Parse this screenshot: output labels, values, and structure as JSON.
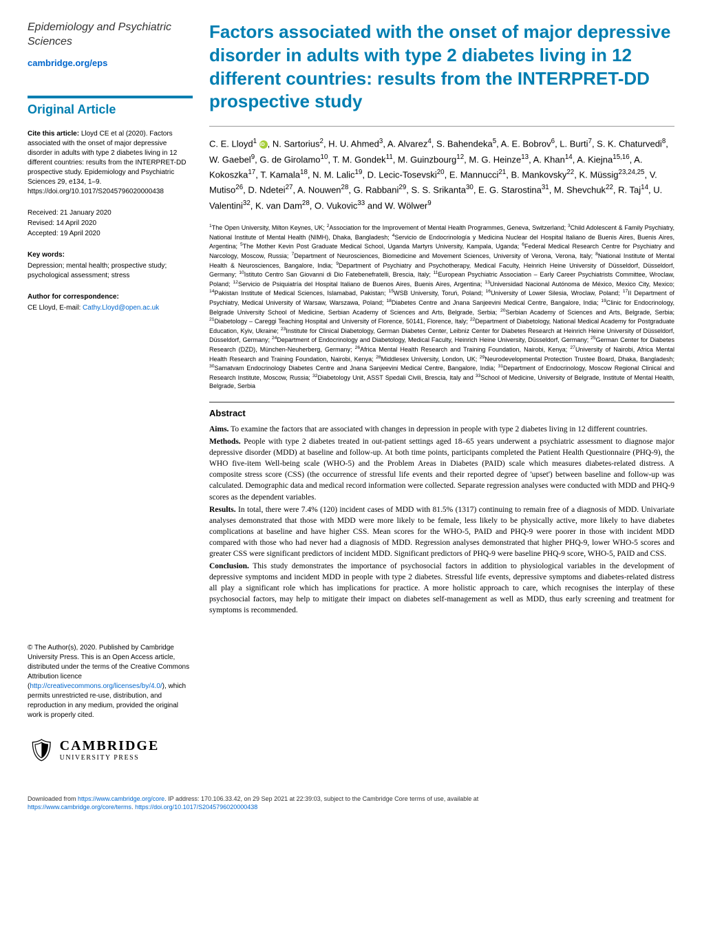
{
  "journal": {
    "name": "Epidemiology and Psychiatric Sciences",
    "link": "cambridge.org/eps"
  },
  "article_type": "Original Article",
  "citation": {
    "label": "Cite this article:",
    "text": "Lloyd CE et al (2020). Factors associated with the onset of major depressive disorder in adults with type 2 diabetes living in 12 different countries: results from the INTERPRET-DD prospective study. Epidemiology and Psychiatric Sciences 29, e134, 1–9. https://doi.org/10.1017/S2045796020000438"
  },
  "dates": {
    "received": "Received: 21 January 2020",
    "revised": "Revised: 14 April 2020",
    "accepted": "Accepted: 19 April 2020"
  },
  "keywords": {
    "label": "Key words:",
    "text": "Depression; mental health; prospective study; psychological assessment; stress"
  },
  "correspondence": {
    "label": "Author for correspondence:",
    "name": "CE Lloyd, E-mail: ",
    "email": "Cathy.Lloyd@open.ac.uk"
  },
  "license": {
    "text1": "© The Author(s), 2020. Published by Cambridge University Press. This is an Open Access article, distributed under the terms of the Creative Commons Attribution licence (",
    "link": "http://creativecommons.org/licenses/by/4.0/",
    "text2": "), which permits unrestricted re-use, distribution, and reproduction in any medium, provided the original work is properly cited."
  },
  "cambridge": {
    "top": "CAMBRIDGE",
    "bottom": "UNIVERSITY PRESS"
  },
  "title": "Factors associated with the onset of major depressive disorder in adults with type 2 diabetes living in 12 different countries: results from the INTERPRET-DD prospective study",
  "authors_html": "C. E. Lloyd<sup>1</sup> <span class='orcid' data-name='orcid-icon' data-interactable='false'></span>, N. Sartorius<sup>2</sup>, H. U. Ahmed<sup>3</sup>, A. Alvarez<sup>4</sup>, S. Bahendeka<sup>5</sup>, A. E. Bobrov<sup>6</sup>, L. Burti<sup>7</sup>, S. K. Chaturvedi<sup>8</sup>, W. Gaebel<sup>9</sup>, G. de Girolamo<sup>10</sup>, T. M. Gondek<sup>11</sup>, M. Guinzbourg<sup>12</sup>, M. G. Heinze<sup>13</sup>, A. Khan<sup>14</sup>, A. Kiejna<sup>15,16</sup>, A. Kokoszka<sup>17</sup>, T. Kamala<sup>18</sup>, N. M. Lalic<sup>19</sup>, D. Lecic-Tosevski<sup>20</sup>, E. Mannucci<sup>21</sup>, B. Mankovsky<sup>22</sup>, K. Müssig<sup>23,24,25</sup>, V. Mutiso<sup>26</sup>, D. Ndetei<sup>27</sup>, A. Nouwen<sup>28</sup>, G. Rabbani<sup>29</sup>, S. S. Srikanta<sup>30</sup>, E. G. Starostina<sup>31</sup>, M. Shevchuk<sup>22</sup>, R. Taj<sup>14</sup>, U. Valentini<sup>32</sup>, K. van Dam<sup>28</sup>, O. Vukovic<sup>33</sup> and W. Wölwer<sup>9</sup>",
  "affiliations": "<sup>1</sup>The Open University, Milton Keynes, UK; <sup>2</sup>Association for the Improvement of Mental Health Programmes, Geneva, Switzerland; <sup>3</sup>Child Adolescent & Family Psychiatry, National Institute of Mental Health (NIMH), Dhaka, Bangladesh; <sup>4</sup>Servicio de Endocrinología y Medicina Nuclear del Hospital Italiano de Buenis Aires, Buenis Aires, Argentina; <sup>5</sup>The Mother Kevin Post Graduate Medical School, Uganda Martyrs University, Kampala, Uganda; <sup>6</sup>Federal Medical Research Centre for Psychiatry and Narcology, Moscow, Russia; <sup>7</sup>Department of Neurosciences, Biomedicine and Movement Sciences, University of Verona, Verona, Italy; <sup>8</sup>National Institute of Mental Health & Neurosciences, Bangalore, India; <sup>9</sup>Department of Psychiatry and Psychotherapy, Medical Faculty, Heinrich Heine University of Düsseldorf, Düsseldorf, Germany; <sup>10</sup>Istituto Centro San Giovanni di Dio Fatebenefratelli, Brescia, Italy; <sup>11</sup>European Psychiatric Association – Early Career Psychiatrists Committee, Wroclaw, Poland; <sup>12</sup>Servicio de Psiquiatría del Hospital Italiano de Buenos Aires, Buenis Aires, Argentina; <sup>13</sup>Universidad Nacional Autónoma de México, Mexico City, Mexico; <sup>14</sup>Pakistan Institute of Medical Sciences, Islamabad, Pakistan; <sup>15</sup>WSB University, Toruń, Poland; <sup>16</sup>University of Lower Silesia, Wroclaw, Poland; <sup>17</sup>II Department of Psychiatry, Medical University of Warsaw, Warszawa, Poland; <sup>18</sup>Diabetes Centre and Jnana Sanjeevini Medical Centre, Bangalore, India; <sup>19</sup>Clinic for Endocrinology, Belgrade University School of Medicine, Serbian Academy of Sciences and Arts, Belgrade, Serbia; <sup>20</sup>Serbian Academy of Sciences and Arts, Belgrade, Serbia; <sup>21</sup>Diabetology – Careggi Teaching Hospital and University of Florence, 50141, Florence, Italy; <sup>22</sup>Department of Diabetology, National Medical Academy for Postgraduate Education, Kyiv, Ukraine; <sup>23</sup>Institute for Clinical Diabetology, German Diabetes Center, Leibniz Center for Diabetes Research at Heinrich Heine University of Düsseldorf, Düsseldorf, Germany; <sup>24</sup>Department of Endocrinology and Diabetology, Medical Faculty, Heinrich Heine University, Düsseldorf, Germany; <sup>25</sup>German Center for Diabetes Research (DZD), München-Neuherberg, Germany; <sup>26</sup>Africa Mental Health Research and Training Foundation, Nairobi, Kenya; <sup>27</sup>University of Nairobi, Africa Mental Health Research and Training Foundation, Nairobi, Kenya; <sup>28</sup>Middlesex University, London, UK; <sup>29</sup>Neurodevelopmental Protection Trustee Board, Dhaka, Bangladesh; <sup>30</sup>Samatvam Endocrinology Diabetes Centre and Jnana Sanjeevini Medical Centre, Bangalore, India; <sup>31</sup>Department of Endocrinology, Moscow Regional Clinical and Research Institute, Moscow, Russia; <sup>32</sup>Diabetology Unit, ASST Spedali Civili, Brescia, Italy and <sup>33</sup>School of Medicine, University of Belgrade, Institute of Mental Health, Belgrade, Serbia",
  "abstract": {
    "heading": "Abstract",
    "aims": {
      "label": "Aims.",
      "text": " To examine the factors that are associated with changes in depression in people with type 2 diabetes living in 12 different countries."
    },
    "methods": {
      "label": "Methods.",
      "text": " People with type 2 diabetes treated in out-patient settings aged 18–65 years underwent a psychiatric assessment to diagnose major depressive disorder (MDD) at baseline and follow-up. At both time points, participants completed the Patient Health Questionnaire (PHQ-9), the WHO five-item Well-being scale (WHO-5) and the Problem Areas in Diabetes (PAID) scale which measures diabetes-related distress. A composite stress score (CSS) (the occurrence of stressful life events and their reported degree of 'upset') between baseline and follow-up was calculated. Demographic data and medical record information were collected. Separate regression analyses were conducted with MDD and PHQ-9 scores as the dependent variables."
    },
    "results": {
      "label": "Results.",
      "text": " In total, there were 7.4% (120) incident cases of MDD with 81.5% (1317) continuing to remain free of a diagnosis of MDD. Univariate analyses demonstrated that those with MDD were more likely to be female, less likely to be physically active, more likely to have diabetes complications at baseline and have higher CSS. Mean scores for the WHO-5, PAID and PHQ-9 were poorer in those with incident MDD compared with those who had never had a diagnosis of MDD. Regression analyses demonstrated that higher PHQ-9, lower WHO-5 scores and greater CSS were significant predictors of incident MDD. Significant predictors of PHQ-9 were baseline PHQ-9 score, WHO-5, PAID and CSS."
    },
    "conclusion": {
      "label": "Conclusion.",
      "text": " This study demonstrates the importance of psychosocial factors in addition to physiological variables in the development of depressive symptoms and incident MDD in people with type 2 diabetes. Stressful life events, depressive symptoms and diabetes-related distress all play a significant role which has implications for practice. A more holistic approach to care, which recognises the interplay of these psychosocial factors, may help to mitigate their impact on diabetes self-management as well as MDD, thus early screening and treatment for symptoms is recommended."
    }
  },
  "footer": {
    "line1a": "Downloaded from ",
    "link1": "https://www.cambridge.org/core",
    "line1b": ". IP address: 170.106.33.42, on 29 Sep 2021 at 22:39:03, subject to the Cambridge Core terms of use, available at",
    "link2": "https://www.cambridge.org/core/terms",
    "mid": ". ",
    "link3": "https://doi.org/10.1017/S2045796020000438"
  }
}
